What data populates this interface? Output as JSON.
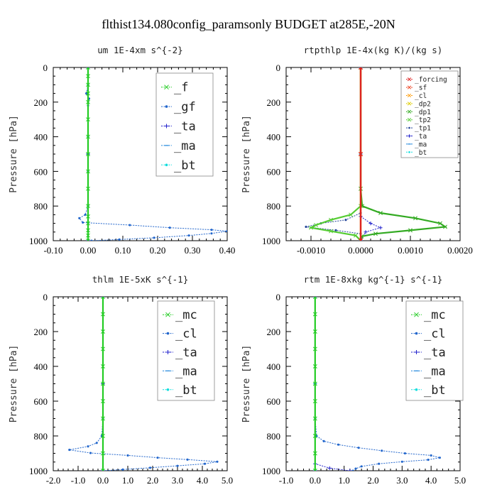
{
  "figure_title": "flthist134.080config_paramsonly  BUDGET at285E,-20N",
  "chart_data": [
    {
      "type": "line",
      "title": "um  1E-4xm s^{-2}",
      "ylabel": "Pressure [hPa]",
      "xlim": [
        -0.1,
        0.4
      ],
      "ylim": [
        1000,
        0
      ],
      "xticks": [
        "-0.10",
        "0.00",
        "0.10",
        "0.20",
        "0.30",
        "0.40"
      ],
      "xtick_values": [
        -0.1,
        0.0,
        0.1,
        0.2,
        0.3,
        0.4
      ],
      "yticks": [
        "0",
        "200",
        "400",
        "600",
        "800",
        "1000"
      ],
      "ytick_values": [
        0,
        200,
        400,
        600,
        800,
        1000
      ],
      "legend_position": "top-right",
      "series": [
        {
          "name": "_f",
          "color": "#22cc22",
          "marker": "x",
          "points": [
            [
              0,
              0
            ],
            [
              0,
              50
            ],
            [
              0,
              100
            ],
            [
              0,
              150
            ],
            [
              0,
              200
            ],
            [
              0,
              300
            ],
            [
              0,
              400
            ],
            [
              0,
              500
            ],
            [
              0,
              600
            ],
            [
              0,
              700
            ],
            [
              0,
              800
            ],
            [
              0,
              860
            ],
            [
              0,
              900
            ],
            [
              0,
              940
            ],
            [
              0,
              970
            ],
            [
              0,
              1000
            ]
          ]
        },
        {
          "name": "_gf",
          "color": "#2266cc",
          "marker": "dot",
          "points": [
            [
              0,
              0
            ],
            [
              0.0,
              100
            ],
            [
              -0.005,
              150
            ],
            [
              0.003,
              180
            ],
            [
              0,
              220
            ],
            [
              0,
              400
            ],
            [
              0,
              600
            ],
            [
              0,
              800
            ],
            [
              -0.008,
              850
            ],
            [
              -0.025,
              870
            ],
            [
              -0.015,
              895
            ],
            [
              0.12,
              910
            ],
            [
              0.235,
              925
            ],
            [
              0.355,
              937
            ],
            [
              0.4,
              945
            ],
            [
              0.355,
              958
            ],
            [
              0.29,
              970
            ],
            [
              0.19,
              983
            ],
            [
              0.09,
              993
            ],
            [
              0.01,
              1000
            ]
          ]
        },
        {
          "name": "_ta",
          "color": "#2222cc",
          "marker": "plus",
          "points": [
            [
              0,
              0
            ],
            [
              0,
              500
            ],
            [
              0,
              1000
            ]
          ]
        },
        {
          "name": "_ma",
          "color": "#2288dd",
          "marker": "dash",
          "points": [
            [
              0,
              0
            ],
            [
              0,
              500
            ],
            [
              0,
              1000
            ]
          ]
        },
        {
          "name": "_bt",
          "color": "#11dddd",
          "marker": "dot",
          "points": [
            [
              0,
              0
            ],
            [
              0,
              500
            ],
            [
              0,
              1000
            ]
          ]
        }
      ]
    },
    {
      "type": "line",
      "title": "rtpthlp  1E-4x(kg K)/(kg s)",
      "ylabel": "Pressure [hPa]",
      "xlim": [
        -0.0015,
        0.002
      ],
      "ylim": [
        1000,
        0
      ],
      "xticks": [
        "-0.0010",
        "0.0000",
        "0.0010",
        "0.0020"
      ],
      "xtick_values": [
        -0.001,
        0.0,
        0.001,
        0.002
      ],
      "yticks": [
        "0",
        "200",
        "400",
        "600",
        "800",
        "1000"
      ],
      "ytick_values": [
        0,
        200,
        400,
        600,
        800,
        1000
      ],
      "legend_position": "top-right",
      "series": [
        {
          "name": "_forcing",
          "color": "#dd2222",
          "marker": "x",
          "points": [
            [
              0,
              0
            ],
            [
              0,
              500
            ],
            [
              0,
              1000
            ]
          ]
        },
        {
          "name": "_sf",
          "color": "#ee4422",
          "marker": "x",
          "points": [
            [
              0,
              0
            ],
            [
              0,
              500
            ],
            [
              0,
              1000
            ]
          ]
        },
        {
          "name": "_cl",
          "color": "#ff9900",
          "marker": "x",
          "points": [
            [
              0,
              0
            ],
            [
              0,
              500
            ],
            [
              0,
              1000
            ]
          ]
        },
        {
          "name": "_dp2",
          "color": "#ddcc00",
          "marker": "x",
          "points": [
            [
              0,
              0
            ],
            [
              0,
              500
            ],
            [
              0,
              1000
            ]
          ]
        },
        {
          "name": "_dp1",
          "color": "#33aa22",
          "marker": "x",
          "points": [
            [
              0,
              0
            ],
            [
              0,
              700
            ],
            [
              3e-05,
              800
            ],
            [
              0.0004,
              840
            ],
            [
              0.0011,
              870
            ],
            [
              0.0016,
              900
            ],
            [
              0.0017,
              920
            ],
            [
              0.001,
              940
            ],
            [
              0.0003,
              960
            ],
            [
              2e-05,
              975
            ],
            [
              0,
              1000
            ]
          ]
        },
        {
          "name": "_tp2",
          "color": "#55cc33",
          "marker": "x",
          "points": [
            [
              0,
              0
            ],
            [
              0,
              800
            ],
            [
              -0.0002,
              850
            ],
            [
              -0.0006,
              880
            ],
            [
              -0.0009,
              910
            ],
            [
              -0.001,
              925
            ],
            [
              -0.0006,
              945
            ],
            [
              -0.0001,
              970
            ],
            [
              0,
              1000
            ]
          ]
        },
        {
          "name": "_tp1",
          "color": "#224499",
          "marker": "dot",
          "points": [
            [
              0,
              0
            ],
            [
              0,
              840
            ],
            [
              -0.0003,
              880
            ],
            [
              -0.0008,
              900
            ],
            [
              -0.0011,
              920
            ],
            [
              -0.0005,
              940
            ],
            [
              0,
              960
            ],
            [
              0,
              1000
            ]
          ]
        },
        {
          "name": "_ta",
          "color": "#2222cc",
          "marker": "plus",
          "points": [
            [
              0,
              0
            ],
            [
              0,
              860
            ],
            [
              0.0002,
              900
            ],
            [
              0.0004,
              925
            ],
            [
              0.0001,
              950
            ],
            [
              0,
              1000
            ]
          ]
        },
        {
          "name": "_ma",
          "color": "#2288dd",
          "marker": "dash",
          "points": [
            [
              0,
              0
            ],
            [
              0,
              500
            ],
            [
              0,
              1000
            ]
          ]
        },
        {
          "name": "_bt",
          "color": "#11dddd",
          "marker": "dot",
          "points": [
            [
              0,
              0
            ],
            [
              0,
              500
            ],
            [
              0,
              1000
            ]
          ]
        }
      ]
    },
    {
      "type": "line",
      "title": "thlm  1E-5xK s^{-1}",
      "ylabel": "Pressure [hPa]",
      "xlim": [
        -2.0,
        5.0
      ],
      "ylim": [
        1000,
        0
      ],
      "xticks": [
        "-2.0",
        "-1.0",
        "0.0",
        "1.0",
        "2.0",
        "3.0",
        "4.0",
        "5.0"
      ],
      "xtick_values": [
        -2.0,
        -1.0,
        0.0,
        1.0,
        2.0,
        3.0,
        4.0,
        5.0
      ],
      "yticks": [
        "0",
        "200",
        "400",
        "600",
        "800",
        "1000"
      ],
      "ytick_values": [
        0,
        200,
        400,
        600,
        800,
        1000
      ],
      "legend_position": "top-right",
      "series": [
        {
          "name": "_mc",
          "color": "#22cc22",
          "marker": "x",
          "points": [
            [
              0,
              0
            ],
            [
              0,
              100
            ],
            [
              0,
              200
            ],
            [
              0,
              300
            ],
            [
              0,
              400
            ],
            [
              0,
              500
            ],
            [
              0,
              600
            ],
            [
              0,
              700
            ],
            [
              0,
              800
            ],
            [
              0,
              900
            ],
            [
              0,
              1000
            ]
          ]
        },
        {
          "name": "_cl",
          "color": "#2266cc",
          "marker": "dot",
          "points": [
            [
              0,
              0
            ],
            [
              0,
              700
            ],
            [
              -0.05,
              800
            ],
            [
              -0.25,
              840
            ],
            [
              -0.6,
              860
            ],
            [
              -1.35,
              880
            ],
            [
              -0.5,
              898
            ],
            [
              1.0,
              912
            ],
            [
              2.2,
              925
            ],
            [
              3.4,
              936
            ],
            [
              4.6,
              948
            ],
            [
              4.1,
              960
            ],
            [
              3.0,
              972
            ],
            [
              1.9,
              983
            ],
            [
              0.8,
              993
            ],
            [
              0,
              1000
            ]
          ]
        },
        {
          "name": "_ta",
          "color": "#2222cc",
          "marker": "plus",
          "points": [
            [
              0,
              0
            ],
            [
              0,
              500
            ],
            [
              0,
              1000
            ]
          ]
        },
        {
          "name": "_ma",
          "color": "#2288dd",
          "marker": "dash",
          "points": [
            [
              0,
              0
            ],
            [
              0,
              500
            ],
            [
              0,
              1000
            ]
          ]
        },
        {
          "name": "_bt",
          "color": "#11dddd",
          "marker": "dot",
          "points": [
            [
              0,
              0
            ],
            [
              0,
              500
            ],
            [
              0,
              1000
            ]
          ]
        }
      ]
    },
    {
      "type": "line",
      "title": "rtm  1E-8xkg kg^{-1} s^{-1}",
      "ylabel": "Pressure [hPa]",
      "xlim": [
        -1.0,
        5.0
      ],
      "ylim": [
        1000,
        0
      ],
      "xticks": [
        "-1.0",
        "0.0",
        "1.0",
        "2.0",
        "3.0",
        "4.0",
        "5.0"
      ],
      "xtick_values": [
        -1.0,
        0.0,
        1.0,
        2.0,
        3.0,
        4.0,
        5.0
      ],
      "yticks": [
        "0",
        "200",
        "400",
        "600",
        "800",
        "1000"
      ],
      "ytick_values": [
        0,
        200,
        400,
        600,
        800,
        1000
      ],
      "legend_position": "top-right",
      "series": [
        {
          "name": "_mc",
          "color": "#22cc22",
          "marker": "x",
          "points": [
            [
              0,
              0
            ],
            [
              0,
              100
            ],
            [
              0,
              200
            ],
            [
              0,
              300
            ],
            [
              0,
              400
            ],
            [
              0,
              500
            ],
            [
              0,
              600
            ],
            [
              0,
              700
            ],
            [
              0,
              800
            ],
            [
              0,
              900
            ],
            [
              0,
              1000
            ]
          ]
        },
        {
          "name": "_cl",
          "color": "#2266cc",
          "marker": "dot",
          "points": [
            [
              0,
              0
            ],
            [
              0,
              700
            ],
            [
              0.05,
              800
            ],
            [
              0.3,
              830
            ],
            [
              0.8,
              850
            ],
            [
              1.5,
              868
            ],
            [
              2.3,
              885
            ],
            [
              3.1,
              900
            ],
            [
              4.0,
              912
            ],
            [
              4.3,
              925
            ],
            [
              3.9,
              937
            ],
            [
              3.0,
              948
            ],
            [
              2.2,
              960
            ],
            [
              1.6,
              975
            ],
            [
              1.4,
              988
            ],
            [
              1.3,
              1000
            ]
          ]
        },
        {
          "name": "_ta",
          "color": "#2222cc",
          "marker": "plus",
          "points": [
            [
              0,
              0
            ],
            [
              0,
              960
            ],
            [
              0.5,
              985
            ],
            [
              1.2,
              1000
            ]
          ]
        },
        {
          "name": "_ma",
          "color": "#2288dd",
          "marker": "dash",
          "points": [
            [
              0,
              0
            ],
            [
              0,
              500
            ],
            [
              0,
              1000
            ]
          ]
        },
        {
          "name": "_bt",
          "color": "#11dddd",
          "marker": "dot",
          "points": [
            [
              0,
              0
            ],
            [
              0,
              500
            ],
            [
              0,
              1000
            ]
          ]
        }
      ]
    }
  ]
}
